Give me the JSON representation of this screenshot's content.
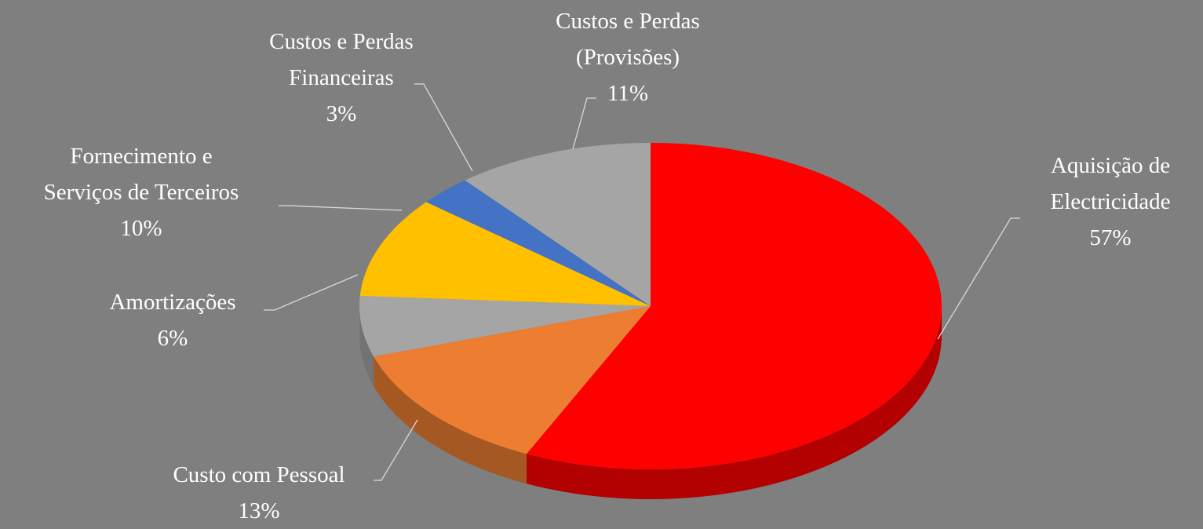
{
  "chart_data": {
    "type": "pie",
    "categories": [
      "Aquisição de\nElectricidade",
      "Custo com Pessoal",
      "Amortizações",
      "Fornecimento e\nServiços de Terceiros",
      "Custos e Perdas\nFinanceiras",
      "Custos e Perdas\n(Provisões)"
    ],
    "values": [
      57,
      13,
      6,
      10,
      3,
      11
    ],
    "value_labels": [
      "57%",
      "13%",
      "6%",
      "10%",
      "3%",
      "11%"
    ],
    "colors": [
      "#ff0000",
      "#ed7d31",
      "#a5a5a5",
      "#ffc000",
      "#4472c4",
      "#a5a5a5"
    ]
  }
}
